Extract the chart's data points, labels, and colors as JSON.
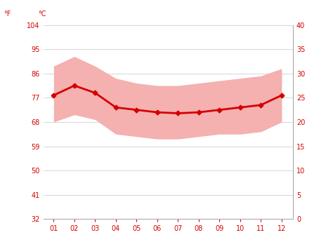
{
  "months": [
    1,
    2,
    3,
    4,
    5,
    6,
    7,
    8,
    9,
    10,
    11,
    12
  ],
  "month_labels": [
    "01",
    "02",
    "03",
    "04",
    "05",
    "06",
    "07",
    "08",
    "09",
    "10",
    "11",
    "12"
  ],
  "mean_temp_c": [
    25.5,
    27.5,
    26.0,
    23.0,
    22.5,
    22.0,
    21.8,
    22.0,
    22.5,
    23.0,
    23.5,
    25.5
  ],
  "min_temp_c": [
    20.0,
    21.5,
    20.5,
    17.5,
    17.0,
    16.5,
    16.5,
    17.0,
    17.5,
    17.5,
    18.0,
    20.0
  ],
  "max_temp_c": [
    31.5,
    33.5,
    31.5,
    29.0,
    28.0,
    27.5,
    27.5,
    28.0,
    28.5,
    29.0,
    29.5,
    31.0
  ],
  "line_color": "#d40000",
  "band_color": "#f5b0b0",
  "label_f": "°F",
  "label_c": "°C",
  "yticks_c": [
    0,
    5,
    10,
    15,
    20,
    25,
    30,
    35,
    40
  ],
  "yticks_f": [
    32,
    41,
    50,
    59,
    68,
    77,
    86,
    95,
    104
  ],
  "ylim_c": [
    0,
    40
  ],
  "background_color": "#ffffff",
  "grid_color": "#d0d0d0",
  "tick_color": "#d40000",
  "marker": "D",
  "marker_size": 3.5,
  "line_width": 2.0
}
